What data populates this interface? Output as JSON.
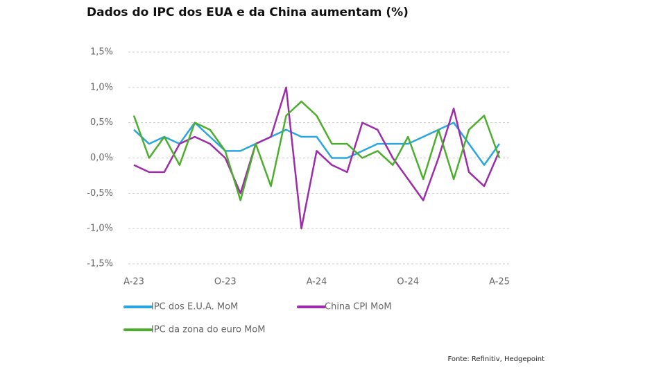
{
  "chart_data": {
    "type": "line",
    "title": "Dados do IPC dos EUA e da China aumentam (%)",
    "source": "Fonte: Refinitiv, Hedgepoint",
    "categories": [
      "A-23",
      null,
      null,
      null,
      null,
      null,
      "O-23",
      null,
      null,
      null,
      null,
      null,
      "A-24",
      null,
      null,
      null,
      null,
      null,
      "O-24",
      null,
      null,
      null,
      null,
      null,
      "A-25"
    ],
    "series": [
      {
        "name": "IPC dos E.U.A. MoM",
        "color": "#2aa6df",
        "values": [
          0.4,
          0.2,
          0.3,
          0.2,
          0.5,
          0.3,
          0.1,
          0.1,
          0.2,
          0.3,
          0.4,
          0.3,
          0.3,
          0.0,
          0.0,
          0.1,
          0.2,
          0.2,
          0.2,
          0.3,
          0.4,
          0.5,
          0.2,
          -0.1,
          0.2
        ]
      },
      {
        "name": "China CPI MoM",
        "color": "#9c2ca8",
        "values": [
          -0.1,
          -0.2,
          -0.2,
          0.2,
          0.3,
          0.2,
          0.0,
          -0.5,
          0.2,
          0.3,
          1.0,
          -1.0,
          0.1,
          -0.1,
          -0.2,
          0.5,
          0.4,
          0.0,
          -0.3,
          -0.6,
          0.0,
          0.7,
          -0.2,
          -0.4,
          0.1
        ]
      },
      {
        "name": "IPC da zona do euro MoM",
        "color": "#4cae2c",
        "values": [
          0.6,
          0.0,
          0.3,
          -0.1,
          0.5,
          0.4,
          0.1,
          -0.6,
          0.2,
          -0.4,
          0.6,
          0.8,
          0.6,
          0.2,
          0.2,
          0.0,
          0.1,
          -0.1,
          0.3,
          -0.3,
          0.4,
          -0.3,
          0.4,
          0.6,
          0.0
        ]
      }
    ],
    "ylim": [
      -1.5,
      1.5
    ],
    "yticks": [
      {
        "value": -1.5,
        "label": "-1,5%"
      },
      {
        "value": -1.0,
        "label": "-1,0%"
      },
      {
        "value": -0.5,
        "label": "-0,5%"
      },
      {
        "value": 0,
        "label": "0,0%"
      },
      {
        "value": 0.5,
        "label": "0,5%"
      },
      {
        "value": 1.0,
        "label": "1,0%"
      },
      {
        "value": 1.5,
        "label": "1,5%"
      }
    ],
    "grid": true
  }
}
